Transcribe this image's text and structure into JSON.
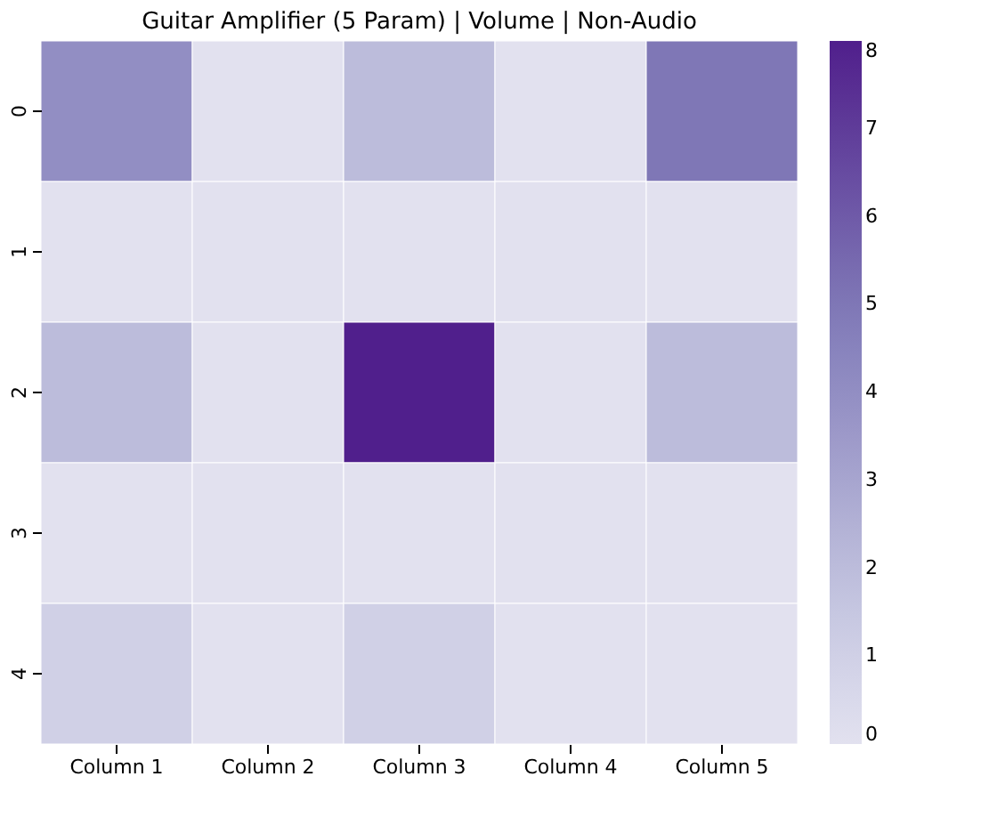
{
  "chart_data": {
    "type": "heatmap",
    "title": "Guitar Amplifier (5 Param) | Volume | Non-Audio",
    "categories": [
      "Column 1",
      "Column 2",
      "Column 3",
      "Column 4",
      "Column 5"
    ],
    "y_categories": [
      "0",
      "1",
      "2",
      "3",
      "4"
    ],
    "cells": [
      [
        4,
        0,
        2,
        0,
        5
      ],
      [
        0,
        0,
        0,
        0,
        0
      ],
      [
        2,
        0,
        8,
        0,
        2
      ],
      [
        0,
        0,
        0,
        0,
        0
      ],
      [
        1,
        0,
        1,
        0,
        0
      ]
    ],
    "clim": [
      0,
      8
    ],
    "cticks": [
      0,
      1,
      2,
      3,
      4,
      5,
      6,
      7,
      8
    ]
  }
}
